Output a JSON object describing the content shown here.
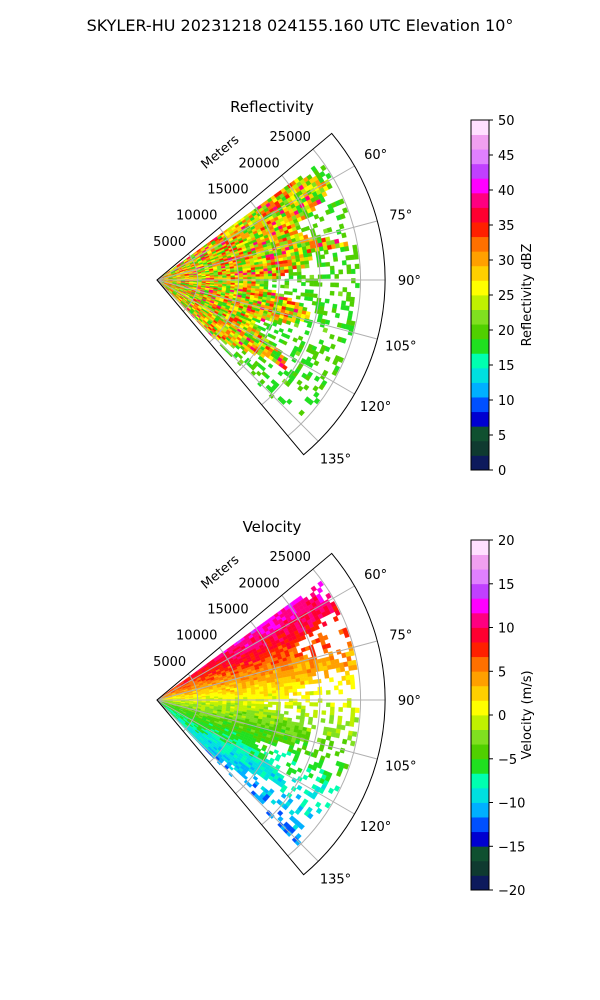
{
  "figure": {
    "title": "SKYLER-HU  20231218  024155.160 UTC Elevation 10°"
  },
  "chart_data": [
    {
      "type": "heatmap",
      "subtype": "polar-sector",
      "title": "Reflectivity",
      "radial_axis_label": "Meters",
      "radial_ticks": [
        5000,
        10000,
        15000,
        20000,
        25000
      ],
      "radial_tick_labels": [
        "5000",
        "10000",
        "15000",
        "20000",
        "25000"
      ],
      "radial_max": 28000,
      "angle_range_deg": [
        50,
        140
      ],
      "angle_ticks": [
        "60°",
        "75°",
        "90°",
        "105°",
        "120°",
        "135°"
      ],
      "colorbar": {
        "label": "Reflectivity dBZ",
        "min": 0,
        "max": 50,
        "ticks": [
          0,
          5,
          10,
          15,
          20,
          25,
          30,
          35,
          40,
          45,
          50
        ],
        "tick_labels": [
          "0",
          "5",
          "10",
          "15",
          "20",
          "25",
          "30",
          "35",
          "40",
          "45",
          "50"
        ],
        "colors": [
          "#0d1a5c",
          "#0f3a30",
          "#105030",
          "#0000d0",
          "#0050ff",
          "#00b0ff",
          "#00e0e0",
          "#00ffb0",
          "#20e020",
          "#50d000",
          "#80e020",
          "#c0f000",
          "#ffff00",
          "#ffd000",
          "#ffa000",
          "#ff7000",
          "#ff2000",
          "#ff0030",
          "#ff0080",
          "#ff00ff",
          "#c040ff",
          "#e080ff",
          "#f0a0f0",
          "#ffe0ff"
        ]
      },
      "echo_summary": {
        "typical_range_dbz": [
          17,
          35
        ],
        "max_dbz": 38,
        "max_range_m": 25000
      }
    },
    {
      "type": "heatmap",
      "subtype": "polar-sector",
      "title": "Velocity",
      "radial_axis_label": "Meters",
      "radial_ticks": [
        5000,
        10000,
        15000,
        20000,
        25000
      ],
      "radial_tick_labels": [
        "5000",
        "10000",
        "15000",
        "20000",
        "25000"
      ],
      "radial_max": 28000,
      "angle_range_deg": [
        50,
        140
      ],
      "angle_ticks": [
        "60°",
        "75°",
        "90°",
        "105°",
        "120°",
        "135°"
      ],
      "colorbar": {
        "label": "Velocity (m/s)",
        "min": -20,
        "max": 20,
        "ticks": [
          -20,
          -15,
          -10,
          -5,
          0,
          5,
          10,
          15,
          20
        ],
        "tick_labels": [
          "−20",
          "−15",
          "−10",
          "−5",
          "0",
          "5",
          "10",
          "15",
          "20"
        ],
        "colors": [
          "#0d1a5c",
          "#0f3a30",
          "#105030",
          "#0000d0",
          "#0050ff",
          "#00b0ff",
          "#00e0e0",
          "#00ffb0",
          "#20e020",
          "#50d000",
          "#80e020",
          "#c0f000",
          "#ffff00",
          "#ffd000",
          "#ffa000",
          "#ff7000",
          "#ff2000",
          "#ff0030",
          "#ff0080",
          "#ff00ff",
          "#c040ff",
          "#e080ff",
          "#f0a0f0",
          "#ffe0ff"
        ]
      },
      "velocity_summary": {
        "min_ms": -13,
        "max_ms": 17,
        "zero_line_angle_deg": 90
      }
    }
  ]
}
